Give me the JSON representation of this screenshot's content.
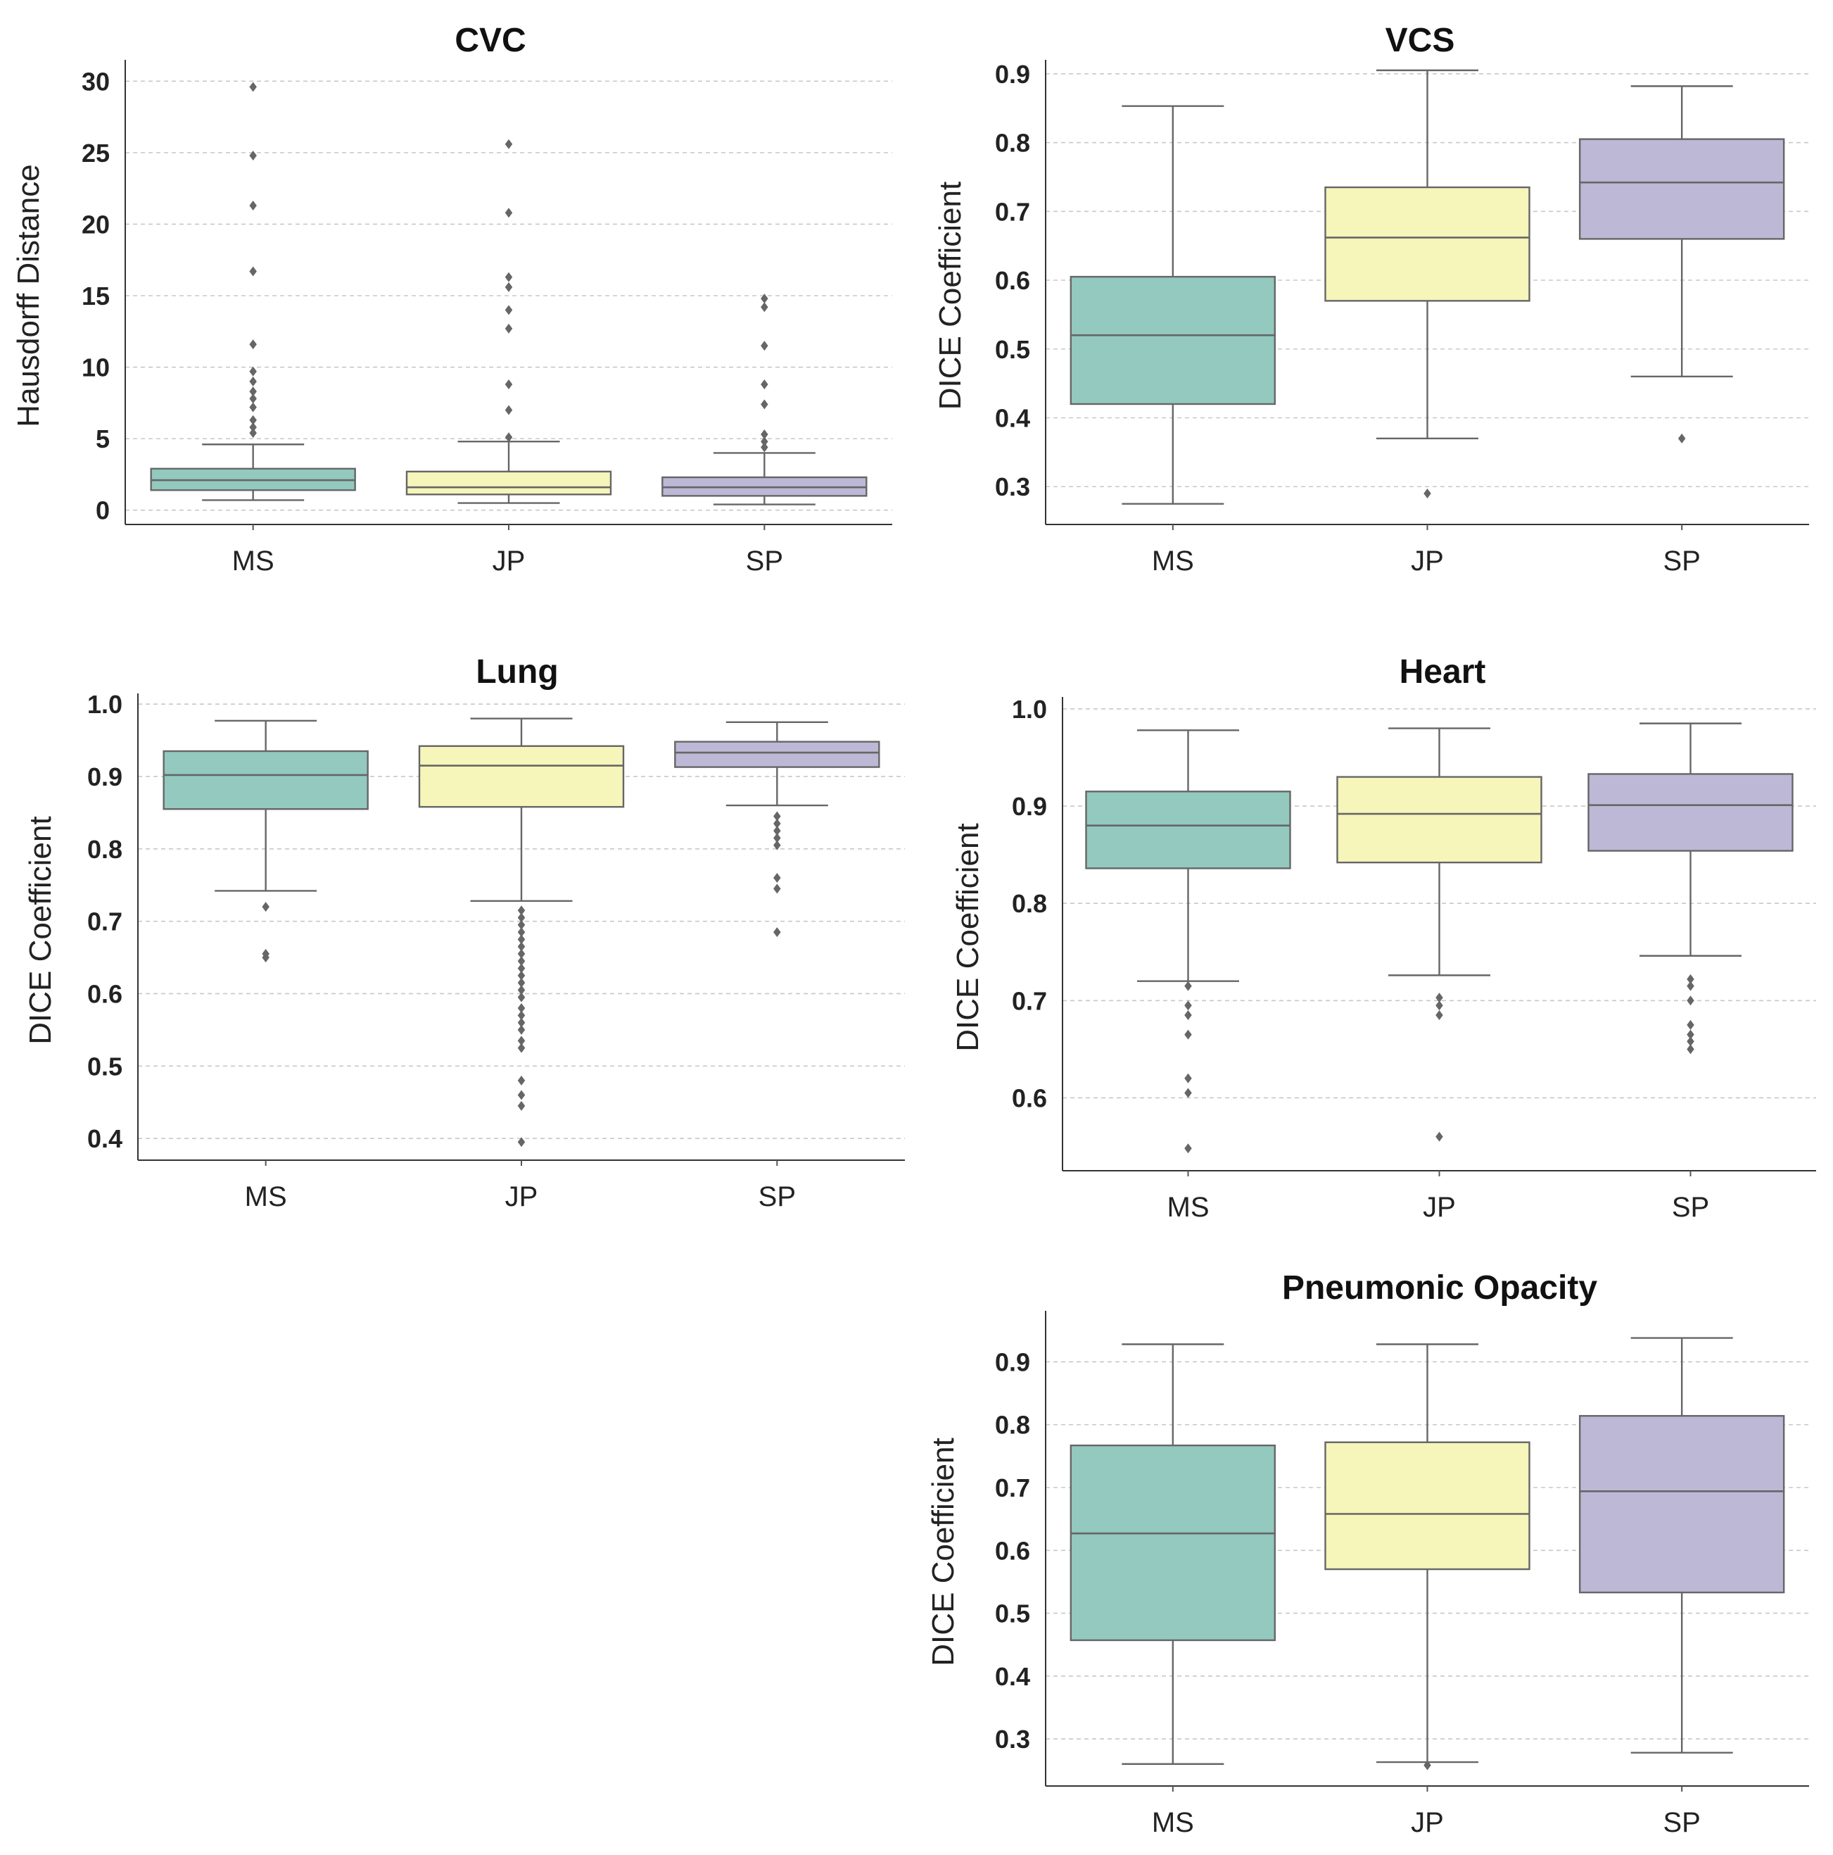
{
  "chart_data": [
    {
      "id": "cvc",
      "type": "box",
      "title": "CVC",
      "ylabel": "Hausdorff Distance",
      "xlabel": "",
      "categories": [
        "MS",
        "JP",
        "SP"
      ],
      "colors": [
        "#93c9bf",
        "#f6f5ba",
        "#bdb8d6"
      ],
      "ylim": [
        -1,
        31
      ],
      "yticks": [
        0,
        5,
        10,
        15,
        20,
        25,
        30
      ],
      "ytick_labels": [
        "0",
        "5",
        "10",
        "15",
        "20",
        "25",
        "30"
      ],
      "grid": true,
      "boxes": [
        {
          "whislo": 0.7,
          "q1": 1.4,
          "med": 2.1,
          "q3": 2.9,
          "whishi": 4.6,
          "fliers": [
            5.4,
            5.8,
            6.3,
            7.2,
            7.8,
            8.3,
            9.0,
            9.7,
            11.6,
            16.7,
            21.3,
            24.8,
            29.6
          ]
        },
        {
          "whislo": 0.5,
          "q1": 1.1,
          "med": 1.6,
          "q3": 2.7,
          "whishi": 4.8,
          "fliers": [
            5.1,
            7.0,
            8.8,
            12.7,
            14.0,
            15.6,
            16.3,
            20.8,
            25.6
          ]
        },
        {
          "whislo": 0.4,
          "q1": 1.0,
          "med": 1.6,
          "q3": 2.3,
          "whishi": 4.0,
          "fliers": [
            4.4,
            4.8,
            5.3,
            7.4,
            8.8,
            11.5,
            14.2,
            14.8
          ]
        }
      ]
    },
    {
      "id": "vcs",
      "type": "box",
      "title": "VCS",
      "ylabel": "DICE Coefficient",
      "xlabel": "",
      "categories": [
        "MS",
        "JP",
        "SP"
      ],
      "colors": [
        "#93c9bf",
        "#f6f5ba",
        "#bdb8d6"
      ],
      "ylim": [
        0.245,
        0.91
      ],
      "yticks": [
        0.3,
        0.4,
        0.5,
        0.6,
        0.7,
        0.8,
        0.9
      ],
      "ytick_labels": [
        "0.3",
        "0.4",
        "0.5",
        "0.6",
        "0.7",
        "0.8",
        "0.9"
      ],
      "grid": true,
      "boxes": [
        {
          "whislo": 0.275,
          "q1": 0.42,
          "med": 0.52,
          "q3": 0.605,
          "whishi": 0.853,
          "fliers": []
        },
        {
          "whislo": 0.37,
          "q1": 0.57,
          "med": 0.662,
          "q3": 0.735,
          "whishi": 0.905,
          "fliers": [
            0.29
          ]
        },
        {
          "whislo": 0.46,
          "q1": 0.66,
          "med": 0.742,
          "q3": 0.805,
          "whishi": 0.882,
          "fliers": [
            0.37
          ]
        }
      ]
    },
    {
      "id": "lung",
      "type": "box",
      "title": "Lung",
      "ylabel": "DICE Coefficient",
      "xlabel": "",
      "categories": [
        "MS",
        "JP",
        "SP"
      ],
      "colors": [
        "#93c9bf",
        "#f6f5ba",
        "#bdb8d6"
      ],
      "ylim": [
        0.37,
        1.005
      ],
      "yticks": [
        0.4,
        0.5,
        0.6,
        0.7,
        0.8,
        0.9,
        1.0
      ],
      "ytick_labels": [
        "0.4",
        "0.5",
        "0.6",
        "0.7",
        "0.8",
        "0.9",
        "1.0"
      ],
      "grid": true,
      "boxes": [
        {
          "whislo": 0.742,
          "q1": 0.855,
          "med": 0.902,
          "q3": 0.935,
          "whishi": 0.977,
          "fliers": [
            0.72,
            0.655,
            0.65
          ]
        },
        {
          "whislo": 0.728,
          "q1": 0.858,
          "med": 0.915,
          "q3": 0.942,
          "whishi": 0.98,
          "fliers": [
            0.715,
            0.705,
            0.695,
            0.685,
            0.675,
            0.665,
            0.655,
            0.645,
            0.635,
            0.625,
            0.615,
            0.605,
            0.595,
            0.58,
            0.57,
            0.56,
            0.55,
            0.535,
            0.525,
            0.48,
            0.46,
            0.445,
            0.395
          ]
        },
        {
          "whislo": 0.86,
          "q1": 0.913,
          "med": 0.933,
          "q3": 0.948,
          "whishi": 0.975,
          "fliers": [
            0.845,
            0.835,
            0.825,
            0.815,
            0.805,
            0.76,
            0.745,
            0.685
          ]
        }
      ]
    },
    {
      "id": "heart",
      "type": "box",
      "title": "Heart",
      "ylabel": "DICE Coefficient",
      "xlabel": "",
      "categories": [
        "MS",
        "JP",
        "SP"
      ],
      "colors": [
        "#93c9bf",
        "#f6f5ba",
        "#bdb8d6"
      ],
      "ylim": [
        0.525,
        1.005
      ],
      "yticks": [
        0.6,
        0.7,
        0.8,
        0.9,
        1.0
      ],
      "ytick_labels": [
        "0.6",
        "0.7",
        "0.8",
        "0.9",
        "1.0"
      ],
      "grid": true,
      "boxes": [
        {
          "whislo": 0.72,
          "q1": 0.836,
          "med": 0.88,
          "q3": 0.915,
          "whishi": 0.978,
          "fliers": [
            0.715,
            0.695,
            0.685,
            0.665,
            0.62,
            0.605,
            0.548
          ]
        },
        {
          "whislo": 0.726,
          "q1": 0.842,
          "med": 0.892,
          "q3": 0.93,
          "whishi": 0.98,
          "fliers": [
            0.703,
            0.695,
            0.685,
            0.56
          ]
        },
        {
          "whislo": 0.746,
          "q1": 0.854,
          "med": 0.901,
          "q3": 0.933,
          "whishi": 0.985,
          "fliers": [
            0.722,
            0.715,
            0.7,
            0.675,
            0.665,
            0.658,
            0.65
          ]
        }
      ]
    },
    {
      "id": "pneumonic-opacity",
      "type": "box",
      "title": "Pneumonic Opacity",
      "ylabel": "DICE Coefficient",
      "xlabel": "",
      "categories": [
        "MS",
        "JP",
        "SP"
      ],
      "colors": [
        "#93c9bf",
        "#f6f5ba",
        "#bdb8d6"
      ],
      "ylim": [
        0.225,
        0.97
      ],
      "yticks": [
        0.3,
        0.4,
        0.5,
        0.6,
        0.7,
        0.8,
        0.9
      ],
      "ytick_labels": [
        "0.3",
        "0.4",
        "0.5",
        "0.6",
        "0.7",
        "0.8",
        "0.9"
      ],
      "grid": true,
      "boxes": [
        {
          "whislo": 0.26,
          "q1": 0.457,
          "med": 0.627,
          "q3": 0.767,
          "whishi": 0.928,
          "fliers": []
        },
        {
          "whislo": 0.263,
          "q1": 0.57,
          "med": 0.658,
          "q3": 0.772,
          "whishi": 0.928,
          "fliers": [
            0.258
          ]
        },
        {
          "whislo": 0.278,
          "q1": 0.533,
          "med": 0.694,
          "q3": 0.814,
          "whishi": 0.938,
          "fliers": []
        }
      ]
    }
  ]
}
